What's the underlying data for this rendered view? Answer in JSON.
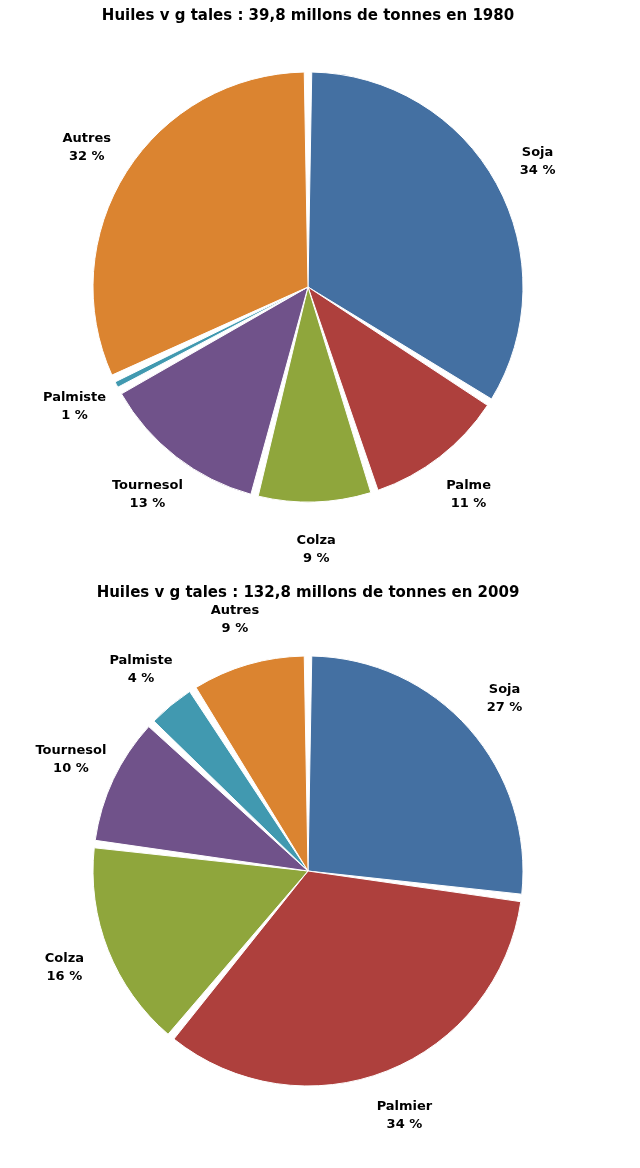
{
  "chart_data": [
    {
      "type": "pie",
      "title": "Huiles v g tales : 39,8 millons de tonnes en 1980",
      "categories": [
        "Soja",
        "Palme",
        "Colza",
        "Tournesol",
        "Palmiste",
        "Autres"
      ],
      "values": [
        34,
        11,
        9,
        13,
        1,
        32
      ],
      "value_labels": [
        "34 %",
        "11 %",
        "9 %",
        "13 %",
        "1 %",
        "32 %"
      ],
      "colors": [
        "#4470a2",
        "#ae403d",
        "#8fa63c",
        "#70528a",
        "#4199b0",
        "#db8430"
      ],
      "legend": false
    },
    {
      "type": "pie",
      "title": "Huiles v g tales : 132,8 millons de tonnes en 2009",
      "categories": [
        "Soja",
        "Palmier",
        "Colza",
        "Tournesol",
        "Palmiste",
        "Autres"
      ],
      "values": [
        27,
        34,
        16,
        10,
        4,
        9
      ],
      "value_labels": [
        "27 %",
        "34 %",
        "16 %",
        "10 %",
        "4 %",
        "9 %"
      ],
      "colors": [
        "#4470a2",
        "#ae403d",
        "#8fa63c",
        "#70528a",
        "#4199b0",
        "#db8430"
      ],
      "legend": false
    }
  ]
}
